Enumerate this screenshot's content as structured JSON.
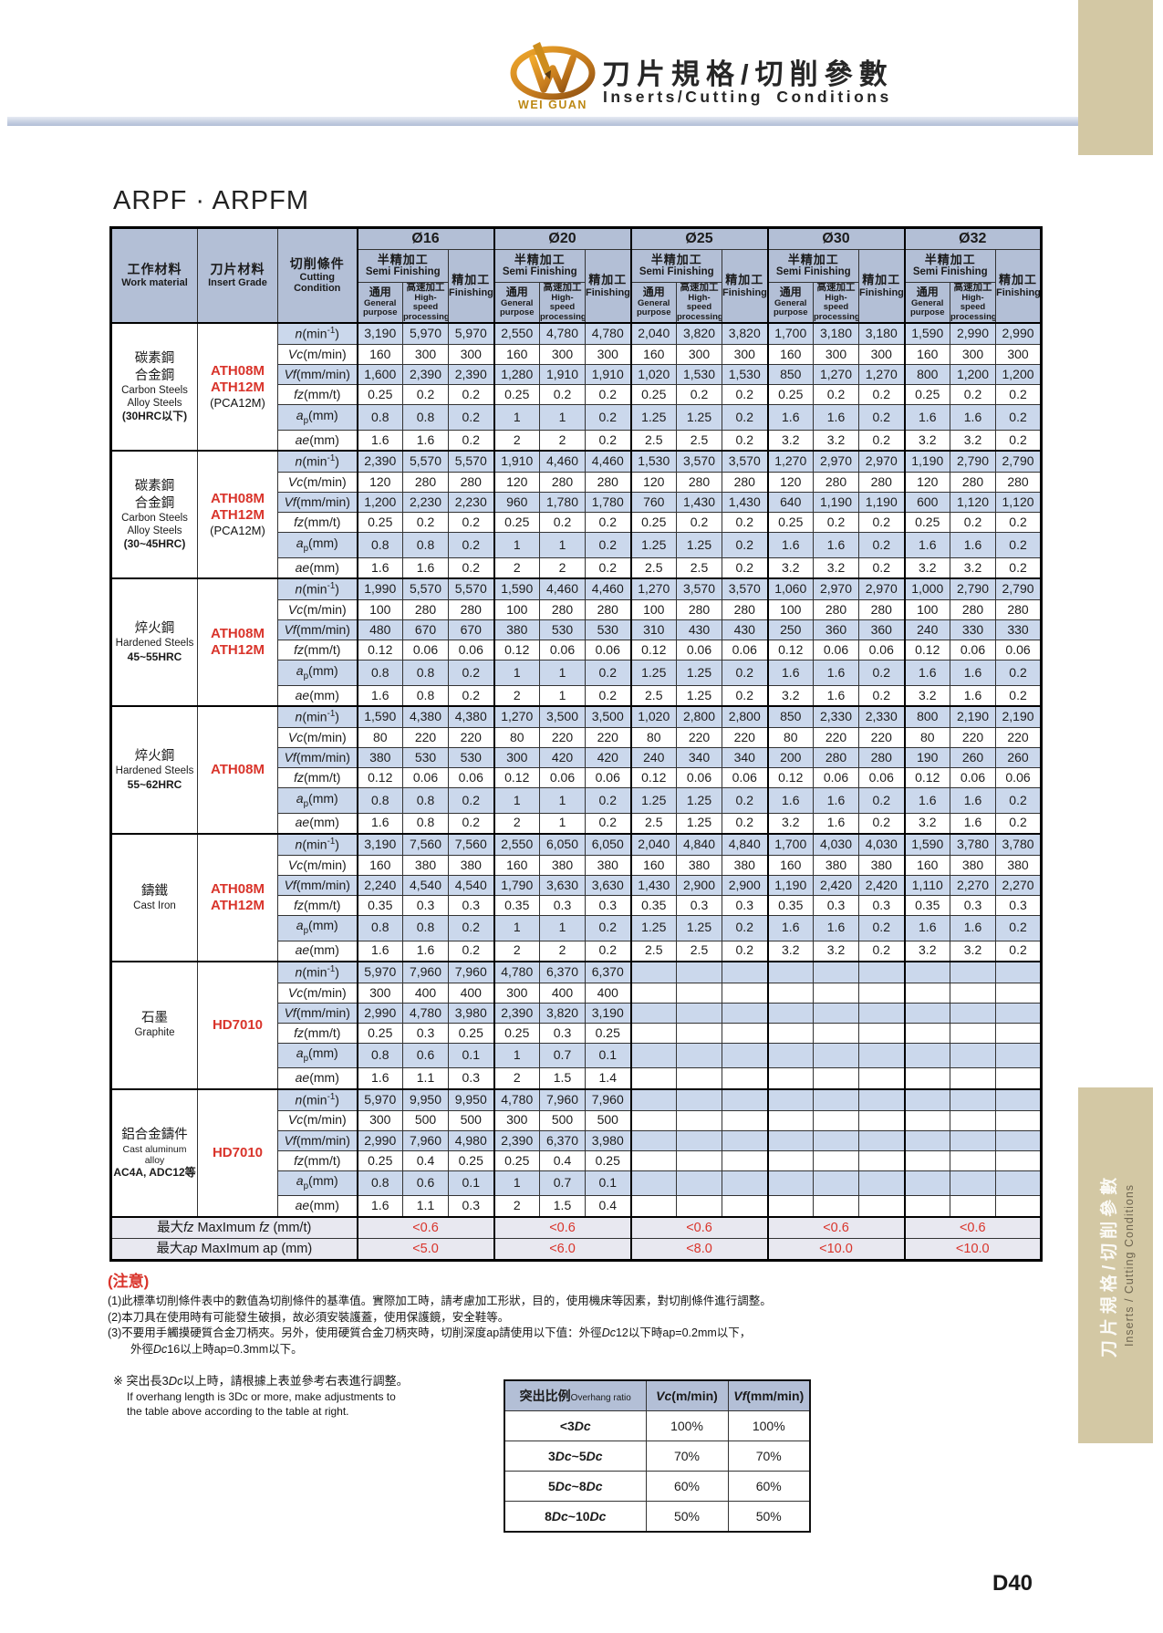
{
  "header": {
    "brand": "WEI GUAN",
    "title_zh": "刀片規格/切削參數",
    "title_en": "Inserts/Cutting Conditions",
    "page_title": "ARPF · ARPFM",
    "page_number": "D40"
  },
  "side_tab": {
    "zh": "刀片規格/切削參數",
    "en": "Inserts / Cutting Conditions"
  },
  "colors": {
    "accent_red": "#d9342b",
    "header_blue": "#b3bfd6",
    "stripe_blue": "#cbd8ec",
    "tab_tan": "#d3c8a4"
  },
  "main_table": {
    "col_headers": {
      "work_material": [
        "工作材料",
        "Work material"
      ],
      "insert_grade": [
        "刀片材料",
        "Insert Grade"
      ],
      "cutting_condition": [
        "切削條件",
        "Cutting Condition"
      ],
      "diameters": [
        "Ø16",
        "Ø20",
        "Ø25",
        "Ø30",
        "Ø32"
      ],
      "semi_zh": "半精加工",
      "semi_en": "Semi Finishing",
      "finish_zh": "精加工",
      "finish_en": "Finishing",
      "gp_zh": "通用",
      "gp_en": [
        "General",
        "purpose"
      ],
      "hs_zh": "高速加工",
      "hs_en": [
        "High-speed",
        "processing"
      ]
    },
    "row_labels": [
      "*n*(min^-1^)",
      "*Vc*(m/min)",
      "*Vf*(mm/min)",
      "*fz*(mm/t)",
      "*a*_p_(mm)",
      "*ae*(mm)"
    ],
    "sections": [
      {
        "material": {
          "zh": [
            "碳素鋼",
            "合金鋼"
          ],
          "en": [
            "Carbon Steels",
            "Alloy Steels"
          ],
          "spec": "(30HRC以下)"
        },
        "grade": {
          "lines": [
            "ATH08M",
            "ATH12M"
          ],
          "note": "(PCA12M)"
        },
        "rows": [
          [
            "3,190",
            "5,970",
            "5,970",
            "2,550",
            "4,780",
            "4,780",
            "2,040",
            "3,820",
            "3,820",
            "1,700",
            "3,180",
            "3,180",
            "1,590",
            "2,990",
            "2,990"
          ],
          [
            "160",
            "300",
            "300",
            "160",
            "300",
            "300",
            "160",
            "300",
            "300",
            "160",
            "300",
            "300",
            "160",
            "300",
            "300"
          ],
          [
            "1,600",
            "2,390",
            "2,390",
            "1,280",
            "1,910",
            "1,910",
            "1,020",
            "1,530",
            "1,530",
            "850",
            "1,270",
            "1,270",
            "800",
            "1,200",
            "1,200"
          ],
          [
            "0.25",
            "0.2",
            "0.2",
            "0.25",
            "0.2",
            "0.2",
            "0.25",
            "0.2",
            "0.2",
            "0.25",
            "0.2",
            "0.2",
            "0.25",
            "0.2",
            "0.2"
          ],
          [
            "0.8",
            "0.8",
            "0.2",
            "1",
            "1",
            "0.2",
            "1.25",
            "1.25",
            "0.2",
            "1.6",
            "1.6",
            "0.2",
            "1.6",
            "1.6",
            "0.2"
          ],
          [
            "1.6",
            "1.6",
            "0.2",
            "2",
            "2",
            "0.2",
            "2.5",
            "2.5",
            "0.2",
            "3.2",
            "3.2",
            "0.2",
            "3.2",
            "3.2",
            "0.2"
          ]
        ]
      },
      {
        "material": {
          "zh": [
            "碳素鋼",
            "合金鋼"
          ],
          "en": [
            "Carbon Steels",
            "Alloy Steels"
          ],
          "spec": "(30~45HRC)"
        },
        "grade": {
          "lines": [
            "ATH08M",
            "ATH12M"
          ],
          "note": "(PCA12M)"
        },
        "rows": [
          [
            "2,390",
            "5,570",
            "5,570",
            "1,910",
            "4,460",
            "4,460",
            "1,530",
            "3,570",
            "3,570",
            "1,270",
            "2,970",
            "2,970",
            "1,190",
            "2,790",
            "2,790"
          ],
          [
            "120",
            "280",
            "280",
            "120",
            "280",
            "280",
            "120",
            "280",
            "280",
            "120",
            "280",
            "280",
            "120",
            "280",
            "280"
          ],
          [
            "1,200",
            "2,230",
            "2,230",
            "960",
            "1,780",
            "1,780",
            "760",
            "1,430",
            "1,430",
            "640",
            "1,190",
            "1,190",
            "600",
            "1,120",
            "1,120"
          ],
          [
            "0.25",
            "0.2",
            "0.2",
            "0.25",
            "0.2",
            "0.2",
            "0.25",
            "0.2",
            "0.2",
            "0.25",
            "0.2",
            "0.2",
            "0.25",
            "0.2",
            "0.2"
          ],
          [
            "0.8",
            "0.8",
            "0.2",
            "1",
            "1",
            "0.2",
            "1.25",
            "1.25",
            "0.2",
            "1.6",
            "1.6",
            "0.2",
            "1.6",
            "1.6",
            "0.2"
          ],
          [
            "1.6",
            "1.6",
            "0.2",
            "2",
            "2",
            "0.2",
            "2.5",
            "2.5",
            "0.2",
            "3.2",
            "3.2",
            "0.2",
            "3.2",
            "3.2",
            "0.2"
          ]
        ]
      },
      {
        "material": {
          "zh": [
            "焠火鋼"
          ],
          "en": [
            "Hardened Steels"
          ],
          "spec": "45~55HRC"
        },
        "grade": {
          "lines": [
            "ATH08M",
            "ATH12M"
          ],
          "note": ""
        },
        "rows": [
          [
            "1,990",
            "5,570",
            "5,570",
            "1,590",
            "4,460",
            "4,460",
            "1,270",
            "3,570",
            "3,570",
            "1,060",
            "2,970",
            "2,970",
            "1,000",
            "2,790",
            "2,790"
          ],
          [
            "100",
            "280",
            "280",
            "100",
            "280",
            "280",
            "100",
            "280",
            "280",
            "100",
            "280",
            "280",
            "100",
            "280",
            "280"
          ],
          [
            "480",
            "670",
            "670",
            "380",
            "530",
            "530",
            "310",
            "430",
            "430",
            "250",
            "360",
            "360",
            "240",
            "330",
            "330"
          ],
          [
            "0.12",
            "0.06",
            "0.06",
            "0.12",
            "0.06",
            "0.06",
            "0.12",
            "0.06",
            "0.06",
            "0.12",
            "0.06",
            "0.06",
            "0.12",
            "0.06",
            "0.06"
          ],
          [
            "0.8",
            "0.8",
            "0.2",
            "1",
            "1",
            "0.2",
            "1.25",
            "1.25",
            "0.2",
            "1.6",
            "1.6",
            "0.2",
            "1.6",
            "1.6",
            "0.2"
          ],
          [
            "1.6",
            "0.8",
            "0.2",
            "2",
            "1",
            "0.2",
            "2.5",
            "1.25",
            "0.2",
            "3.2",
            "1.6",
            "0.2",
            "3.2",
            "1.6",
            "0.2"
          ]
        ]
      },
      {
        "material": {
          "zh": [
            "焠火鋼"
          ],
          "en": [
            "Hardened Steels"
          ],
          "spec": "55~62HRC"
        },
        "grade": {
          "lines": [
            "ATH08M"
          ],
          "note": ""
        },
        "rows": [
          [
            "1,590",
            "4,380",
            "4,380",
            "1,270",
            "3,500",
            "3,500",
            "1,020",
            "2,800",
            "2,800",
            "850",
            "2,330",
            "2,330",
            "800",
            "2,190",
            "2,190"
          ],
          [
            "80",
            "220",
            "220",
            "80",
            "220",
            "220",
            "80",
            "220",
            "220",
            "80",
            "220",
            "220",
            "80",
            "220",
            "220"
          ],
          [
            "380",
            "530",
            "530",
            "300",
            "420",
            "420",
            "240",
            "340",
            "340",
            "200",
            "280",
            "280",
            "190",
            "260",
            "260"
          ],
          [
            "0.12",
            "0.06",
            "0.06",
            "0.12",
            "0.06",
            "0.06",
            "0.12",
            "0.06",
            "0.06",
            "0.12",
            "0.06",
            "0.06",
            "0.12",
            "0.06",
            "0.06"
          ],
          [
            "0.8",
            "0.8",
            "0.2",
            "1",
            "1",
            "0.2",
            "1.25",
            "1.25",
            "0.2",
            "1.6",
            "1.6",
            "0.2",
            "1.6",
            "1.6",
            "0.2"
          ],
          [
            "1.6",
            "0.8",
            "0.2",
            "2",
            "1",
            "0.2",
            "2.5",
            "1.25",
            "0.2",
            "3.2",
            "1.6",
            "0.2",
            "3.2",
            "1.6",
            "0.2"
          ]
        ]
      },
      {
        "material": {
          "zh": [
            "鑄鐵"
          ],
          "en": [
            "Cast Iron"
          ],
          "spec": ""
        },
        "grade": {
          "lines": [
            "ATH08M",
            "ATH12M"
          ],
          "note": ""
        },
        "rows": [
          [
            "3,190",
            "7,560",
            "7,560",
            "2,550",
            "6,050",
            "6,050",
            "2,040",
            "4,840",
            "4,840",
            "1,700",
            "4,030",
            "4,030",
            "1,590",
            "3,780",
            "3,780"
          ],
          [
            "160",
            "380",
            "380",
            "160",
            "380",
            "380",
            "160",
            "380",
            "380",
            "160",
            "380",
            "380",
            "160",
            "380",
            "380"
          ],
          [
            "2,240",
            "4,540",
            "4,540",
            "1,790",
            "3,630",
            "3,630",
            "1,430",
            "2,900",
            "2,900",
            "1,190",
            "2,420",
            "2,420",
            "1,110",
            "2,270",
            "2,270"
          ],
          [
            "0.35",
            "0.3",
            "0.3",
            "0.35",
            "0.3",
            "0.3",
            "0.35",
            "0.3",
            "0.3",
            "0.35",
            "0.3",
            "0.3",
            "0.35",
            "0.3",
            "0.3"
          ],
          [
            "0.8",
            "0.8",
            "0.2",
            "1",
            "1",
            "0.2",
            "1.25",
            "1.25",
            "0.2",
            "1.6",
            "1.6",
            "0.2",
            "1.6",
            "1.6",
            "0.2"
          ],
          [
            "1.6",
            "1.6",
            "0.2",
            "2",
            "2",
            "0.2",
            "2.5",
            "2.5",
            "0.2",
            "3.2",
            "3.2",
            "0.2",
            "3.2",
            "3.2",
            "0.2"
          ]
        ]
      },
      {
        "material": {
          "zh": [
            "石墨"
          ],
          "en": [
            "Graphite"
          ],
          "spec": ""
        },
        "grade": {
          "lines": [
            "HD7010"
          ],
          "note": ""
        },
        "rows": [
          [
            "5,970",
            "7,960",
            "7,960",
            "4,780",
            "6,370",
            "6,370"
          ],
          [
            "300",
            "400",
            "400",
            "300",
            "400",
            "400"
          ],
          [
            "2,990",
            "4,780",
            "3,980",
            "2,390",
            "3,820",
            "3,190"
          ],
          [
            "0.25",
            "0.3",
            "0.25",
            "0.25",
            "0.3",
            "0.25"
          ],
          [
            "0.8",
            "0.6",
            "0.1",
            "1",
            "0.7",
            "0.1"
          ],
          [
            "1.6",
            "1.1",
            "0.3",
            "2",
            "1.5",
            "1.4"
          ]
        ]
      },
      {
        "material": {
          "zh": [
            "鋁合金鑄件"
          ],
          "en": [
            "Cast aluminum alloy"
          ],
          "spec": "AC4A, ADC12等"
        },
        "grade": {
          "lines": [
            "HD7010"
          ],
          "note": ""
        },
        "rows": [
          [
            "5,970",
            "9,950",
            "9,950",
            "4,780",
            "7,960",
            "7,960"
          ],
          [
            "300",
            "500",
            "500",
            "300",
            "500",
            "500"
          ],
          [
            "2,990",
            "7,960",
            "4,980",
            "2,390",
            "6,370",
            "3,980"
          ],
          [
            "0.25",
            "0.4",
            "0.25",
            "0.25",
            "0.4",
            "0.25"
          ],
          [
            "0.8",
            "0.6",
            "0.1",
            "1",
            "0.7",
            "0.1"
          ],
          [
            "1.6",
            "1.1",
            "0.3",
            "2",
            "1.5",
            "0.4"
          ]
        ]
      }
    ],
    "footer_rows": [
      {
        "label": "最大*fz* MaxImum *fz* (mm/t)",
        "values": [
          "<0.6",
          "<0.6",
          "<0.6",
          "<0.6",
          "<0.6"
        ]
      },
      {
        "label": "最大*ap* MaxImum ap (mm)",
        "values": [
          "<5.0",
          "<6.0",
          "<8.0",
          "<10.0",
          "<10.0"
        ]
      }
    ]
  },
  "notes": {
    "title": "(注意)",
    "items": [
      "(1)此標準切削條件表中的數值為切削條件的基準值。實際加工時，請考慮加工形狀，目的，使用機床等因素，對切削條件進行調整。",
      "(2)本刀具在使用時有可能發生破損，故必須安裝護蓋，使用保護鏡，安全鞋等。",
      "(3)不要用手觸摸硬質合金刀柄夾。另外，使用硬質合金刀柄夾時，切削深度ap請使用以下值：外徑*Dc*12以下時ap=0.2mm以下，",
      "　　外徑*Dc*16以上時ap=0.3mm以下。"
    ]
  },
  "overhang_note": {
    "zh": "※ 突出長3*Dc*以上時，請根據上表並參考右表進行調整。",
    "en": [
      "If overhang length is 3Dc or more, make adjustments to",
      "the table above according to the table at right."
    ]
  },
  "overhang_table": {
    "header": {
      "ratio_zh": "突出比例",
      "ratio_en": "Overhang ratio",
      "vc": "*Vc*(m/min)",
      "vf": "*Vf*(mm/min)"
    },
    "rows": [
      [
        "<3*Dc*",
        "100%",
        "100%"
      ],
      [
        "3*Dc*~5*Dc*",
        "70%",
        "70%"
      ],
      [
        "5*Dc*~8*Dc*",
        "60%",
        "60%"
      ],
      [
        "8*Dc*~10*Dc*",
        "50%",
        "50%"
      ]
    ]
  }
}
